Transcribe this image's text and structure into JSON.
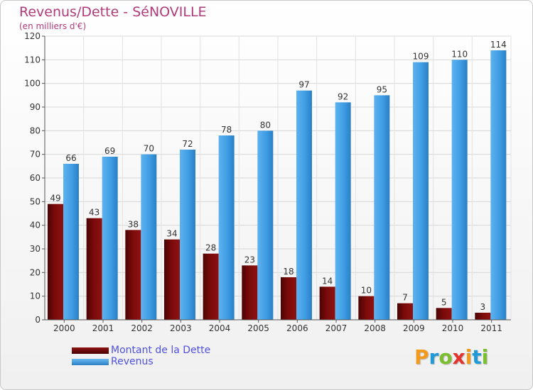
{
  "title": "Revenus/Dette - SéNOVILLE",
  "subtitle": "(en milliers d'€)",
  "chart_data": {
    "type": "bar",
    "categories": [
      "2000",
      "2001",
      "2002",
      "2003",
      "2004",
      "2005",
      "2006",
      "2007",
      "2008",
      "2009",
      "2010",
      "2011"
    ],
    "series": [
      {
        "name": "Montant de la Dette",
        "color": "#7a0a0a",
        "values": [
          49,
          43,
          38,
          34,
          28,
          23,
          18,
          14,
          10,
          7,
          5,
          3
        ]
      },
      {
        "name": "Revenus",
        "color": "#3f9de4",
        "values": [
          66,
          69,
          70,
          72,
          78,
          80,
          97,
          92,
          95,
          109,
          110,
          114
        ]
      }
    ],
    "ylim": [
      0,
      120
    ],
    "yticks": [
      0,
      10,
      20,
      30,
      40,
      50,
      60,
      70,
      80,
      90,
      100,
      110,
      120
    ],
    "grid": true,
    "legend_position": "bottom-left"
  },
  "logo": {
    "letters": [
      "P",
      "r",
      "o",
      "x",
      "i",
      "t",
      "i"
    ],
    "colors": [
      "#f29a1c",
      "#1e9ad6",
      "#7cbf2e",
      "#e5322d",
      "#f29a1c",
      "#1e9ad6",
      "#7cbf2e"
    ]
  }
}
